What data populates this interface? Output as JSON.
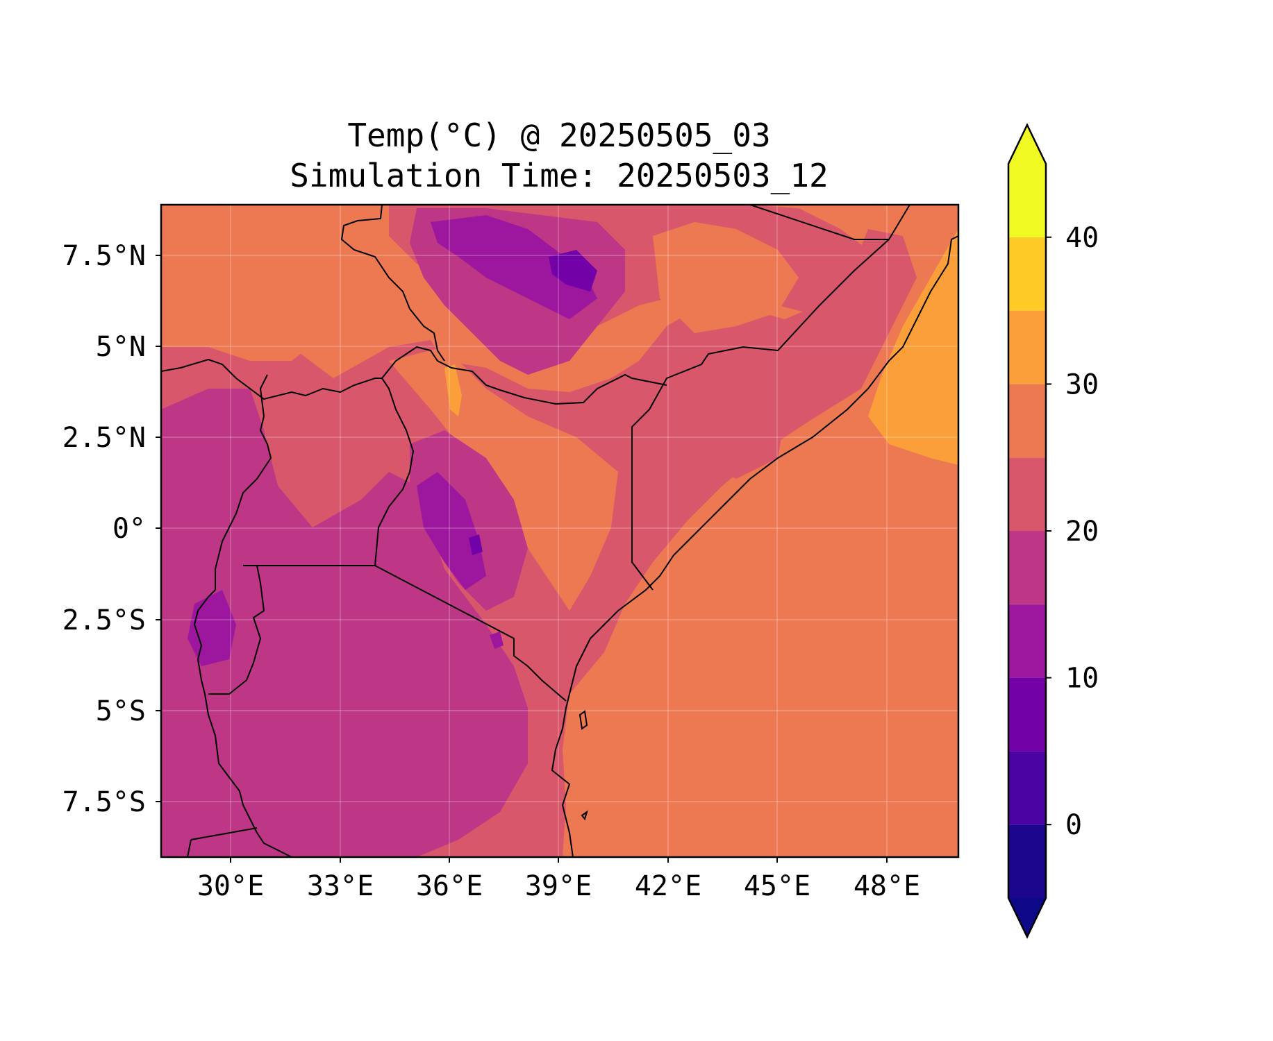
{
  "title_line1": "Temp(°C) @ 20250505_03",
  "title_line2": "Simulation Time: 20250503_12",
  "chart_data": {
    "type": "heatmap",
    "variable": "Temp(°C)",
    "valid_time": "20250505_03",
    "simulation_time": "20250503_12",
    "xlim": [
      27.7,
      50.2
    ],
    "ylim": [
      -9.0,
      8.9
    ],
    "x_ticks": [
      {
        "value": 30,
        "label": "30°E"
      },
      {
        "value": 33,
        "label": "33°E"
      },
      {
        "value": 36,
        "label": "36°E"
      },
      {
        "value": 39,
        "label": "39°E"
      },
      {
        "value": 42,
        "label": "42°E"
      },
      {
        "value": 45,
        "label": "45°E"
      },
      {
        "value": 48,
        "label": "48°E"
      }
    ],
    "y_ticks": [
      {
        "value": 7.5,
        "label": "7.5°N"
      },
      {
        "value": 5,
        "label": "5°N"
      },
      {
        "value": 2.5,
        "label": "2.5°N"
      },
      {
        "value": 0,
        "label": "0°"
      },
      {
        "value": -2.5,
        "label": "2.5°S"
      },
      {
        "value": -5,
        "label": "5°S"
      },
      {
        "value": -7.5,
        "label": "7.5°S"
      }
    ],
    "grid": true,
    "colorbar": {
      "min": -5,
      "max": 45,
      "extend": "both",
      "levels": [
        -5,
        0,
        5,
        10,
        15,
        20,
        25,
        30,
        35,
        40,
        45
      ],
      "colors": [
        "#1b068d",
        "#4a02a0",
        "#7201a8",
        "#9c179e",
        "#bd3786",
        "#d8576b",
        "#ed7953",
        "#fb9f3a",
        "#fdca26",
        "#f0f921"
      ],
      "under_color": "#0d0887",
      "over_color": "#f0f921",
      "ticks": [
        {
          "value": 0,
          "label": "0"
        },
        {
          "value": 10,
          "label": "10"
        },
        {
          "value": 20,
          "label": "20"
        },
        {
          "value": 30,
          "label": "30"
        },
        {
          "value": 40,
          "label": "40"
        }
      ]
    }
  }
}
